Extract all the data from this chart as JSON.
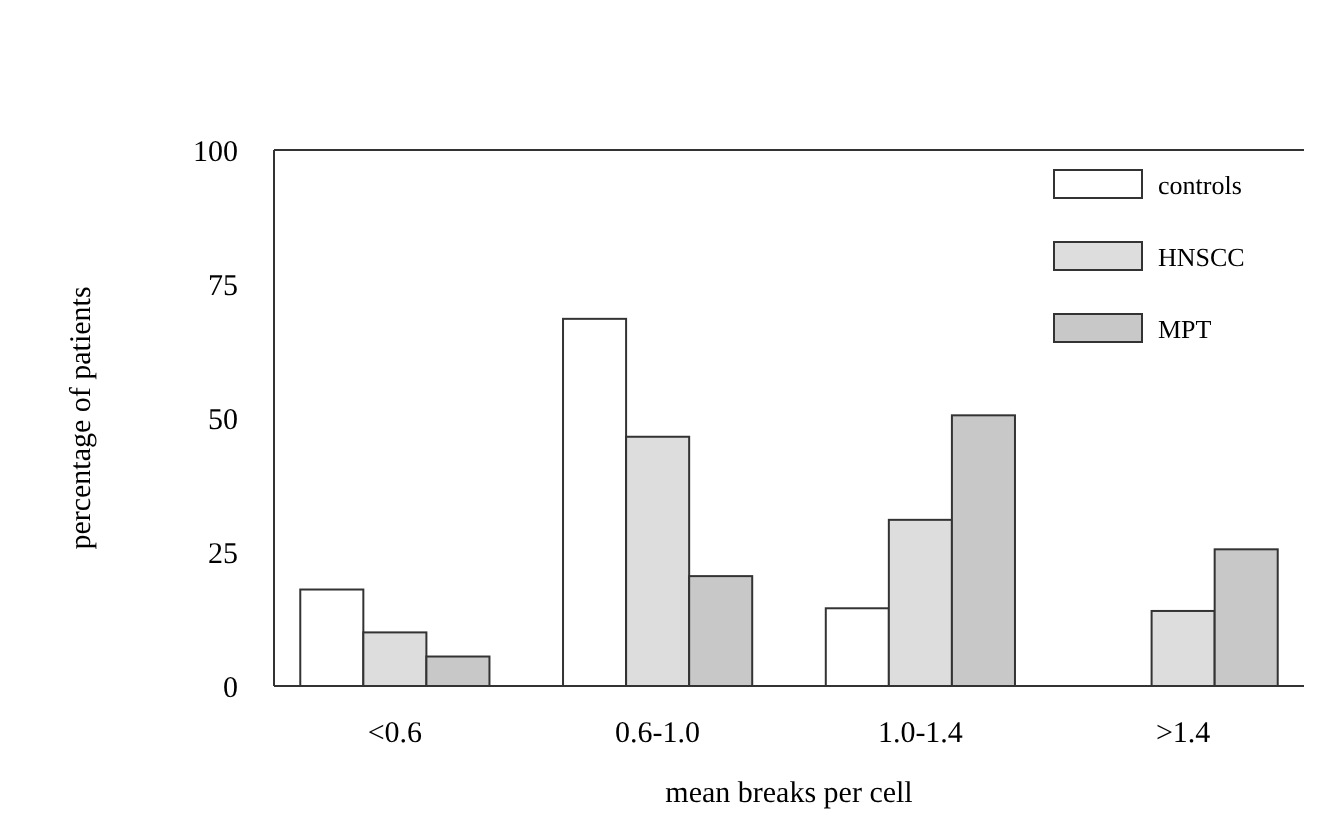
{
  "chart_data": {
    "type": "bar",
    "xlabel": "mean breaks per cell",
    "ylabel": "percentage of patients",
    "categories": [
      "<0.6",
      "0.6-1.0",
      "1.0-1.4",
      ">1.4"
    ],
    "series": [
      {
        "name": "controls",
        "color": "#ffffff",
        "values": [
          18,
          68.5,
          14.5,
          0
        ]
      },
      {
        "name": "HNSCC",
        "color": "#dddddd",
        "values": [
          10,
          46.5,
          31,
          14
        ]
      },
      {
        "name": "MPT",
        "color": "#c8c8c8",
        "values": [
          5.5,
          20.5,
          50.5,
          25.5
        ]
      }
    ],
    "ylim": [
      0,
      100
    ],
    "yticks": [
      0,
      25,
      50,
      75,
      100
    ],
    "grid": false,
    "legend": "top right"
  }
}
